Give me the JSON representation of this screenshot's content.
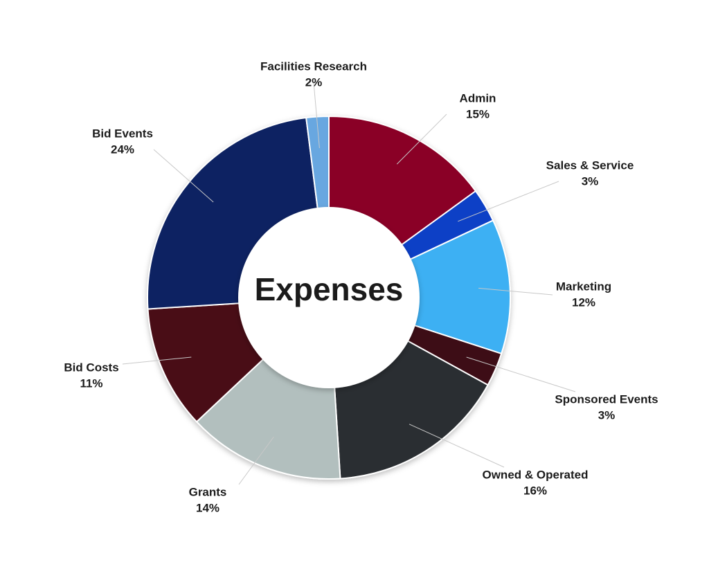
{
  "chart_data": {
    "type": "donut",
    "title": "Expenses",
    "categories": [
      "Admin",
      "Sales & Service",
      "Marketing",
      "Sponsored Events",
      "Owned & Operated",
      "Grants",
      "Bid Costs",
      "Bid Events",
      "Facilities Research"
    ],
    "values": [
      15,
      3,
      12,
      3,
      16,
      14,
      11,
      24,
      2
    ],
    "value_labels": [
      "15%",
      "3%",
      "12%",
      "3%",
      "16%",
      "14%",
      "11%",
      "24%",
      "2%"
    ],
    "colors": [
      "#8a0027",
      "#0c3fc6",
      "#3eb0f3",
      "#3c0b18",
      "#2a2d31",
      "#b2bfbe",
      "#4a0c19",
      "#0b2262",
      "#68a7e0"
    ]
  }
}
